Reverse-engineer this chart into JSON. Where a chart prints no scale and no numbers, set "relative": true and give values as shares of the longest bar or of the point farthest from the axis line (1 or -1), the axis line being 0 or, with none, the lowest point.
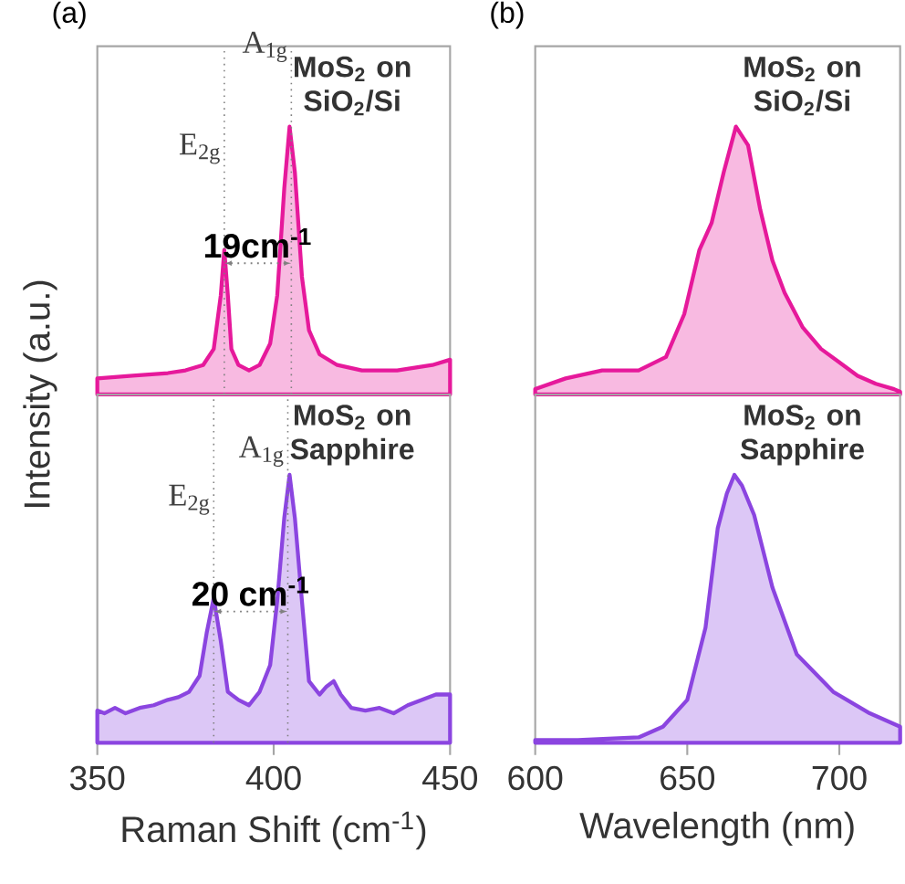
{
  "chart_data": [
    {
      "type": "area",
      "relative": true,
      "title": "(a)",
      "subtitle": "MoS$_{2}$ on SiO$_{2}$/Si",
      "color": "#e6199b",
      "xlim": [
        350,
        450
      ],
      "tick_labels": false,
      "x": [
        350,
        360,
        370,
        375,
        380,
        383,
        385,
        386,
        387,
        388,
        390,
        393,
        396,
        399,
        401,
        403,
        404.5,
        406,
        408,
        410,
        413,
        418,
        425,
        435,
        445,
        450
      ],
      "values": [
        0.06,
        0.07,
        0.08,
        0.09,
        0.11,
        0.17,
        0.37,
        0.54,
        0.37,
        0.17,
        0.11,
        0.09,
        0.11,
        0.19,
        0.37,
        0.77,
        1.0,
        0.83,
        0.44,
        0.24,
        0.15,
        0.11,
        0.09,
        0.09,
        0.11,
        0.13
      ],
      "ref_lines": [
        {
          "axis": "x",
          "value": 386,
          "line_style": "dotted",
          "color": "#808080"
        },
        {
          "axis": "x",
          "value": 405,
          "line_style": "dotted",
          "color": "#808080"
        }
      ],
      "annotations": [
        {
          "text": "E$_{2g}$",
          "x": 386,
          "y": 0.85
        },
        {
          "text": "A$_{1g}$",
          "x": 405,
          "y": 1.23
        },
        "19cm$^{-1}$"
      ]
    },
    {
      "type": "area",
      "relative": true,
      "title": "(b)",
      "subtitle": "MoS$_{2}$ on SiO$_{2}$/Si",
      "color": "#e6199b",
      "xlim": [
        600,
        720
      ],
      "tick_labels": false,
      "x": [
        600,
        610,
        622,
        634,
        643,
        649,
        654,
        658,
        662,
        666,
        670,
        674,
        678,
        682,
        688,
        694,
        700,
        706,
        712,
        718,
        720
      ],
      "values": [
        0.02,
        0.06,
        0.09,
        0.09,
        0.14,
        0.3,
        0.54,
        0.64,
        0.83,
        1.0,
        0.93,
        0.69,
        0.5,
        0.38,
        0.25,
        0.17,
        0.12,
        0.07,
        0.04,
        0.02,
        0.01
      ]
    },
    {
      "type": "area",
      "relative": true,
      "subtitle": "MoS$_{2}$ on Sapphire",
      "color": "#8b45e0",
      "xlim": [
        350,
        450
      ],
      "xticks": [
        350,
        400,
        450
      ],
      "tick_labels": "x",
      "xlabel": "Raman Shift (cm$^{-1}$)",
      "ylabel": "Intensity (a.u.)",
      "x": [
        350,
        352,
        355,
        358,
        362,
        366,
        370,
        373,
        376,
        379,
        381,
        383,
        385,
        387,
        390,
        393,
        396,
        399,
        401,
        403,
        404.5,
        406,
        408,
        410,
        413,
        415,
        417,
        419,
        422,
        426,
        430,
        434,
        438,
        442,
        446,
        450
      ],
      "values": [
        0.12,
        0.11,
        0.13,
        0.11,
        0.13,
        0.14,
        0.16,
        0.17,
        0.19,
        0.25,
        0.41,
        0.54,
        0.38,
        0.19,
        0.16,
        0.14,
        0.19,
        0.29,
        0.53,
        0.84,
        1.0,
        0.84,
        0.53,
        0.23,
        0.18,
        0.21,
        0.23,
        0.18,
        0.13,
        0.12,
        0.13,
        0.11,
        0.14,
        0.16,
        0.18,
        0.18
      ],
      "ref_lines": [
        {
          "axis": "x",
          "value": 383,
          "line_style": "dotted",
          "color": "#808080"
        },
        {
          "axis": "x",
          "value": 404,
          "line_style": "dotted",
          "color": "#808080"
        }
      ],
      "annotations": [
        {
          "text": "E$_{2g}$",
          "x": 383,
          "y": 0.84
        },
        {
          "text": "A$_{1g}$",
          "x": 404,
          "y": 1.02
        },
        "20 cm$^{-1}$"
      ]
    },
    {
      "type": "area",
      "relative": true,
      "subtitle": "MoS$_{2}$ on Sapphire",
      "color": "#8b45e0",
      "xlim": [
        600,
        720
      ],
      "xticks": [
        600,
        650,
        700
      ],
      "tick_labels": "x",
      "xlabel": "Wavelength (nm)",
      "x": [
        600,
        614,
        634,
        642,
        650,
        656,
        660,
        663,
        665.5,
        668,
        672,
        678,
        686,
        698,
        710,
        720
      ],
      "values": [
        0.01,
        0.01,
        0.02,
        0.06,
        0.16,
        0.43,
        0.8,
        0.93,
        1.0,
        0.96,
        0.85,
        0.58,
        0.33,
        0.19,
        0.11,
        0.06
      ]
    }
  ]
}
